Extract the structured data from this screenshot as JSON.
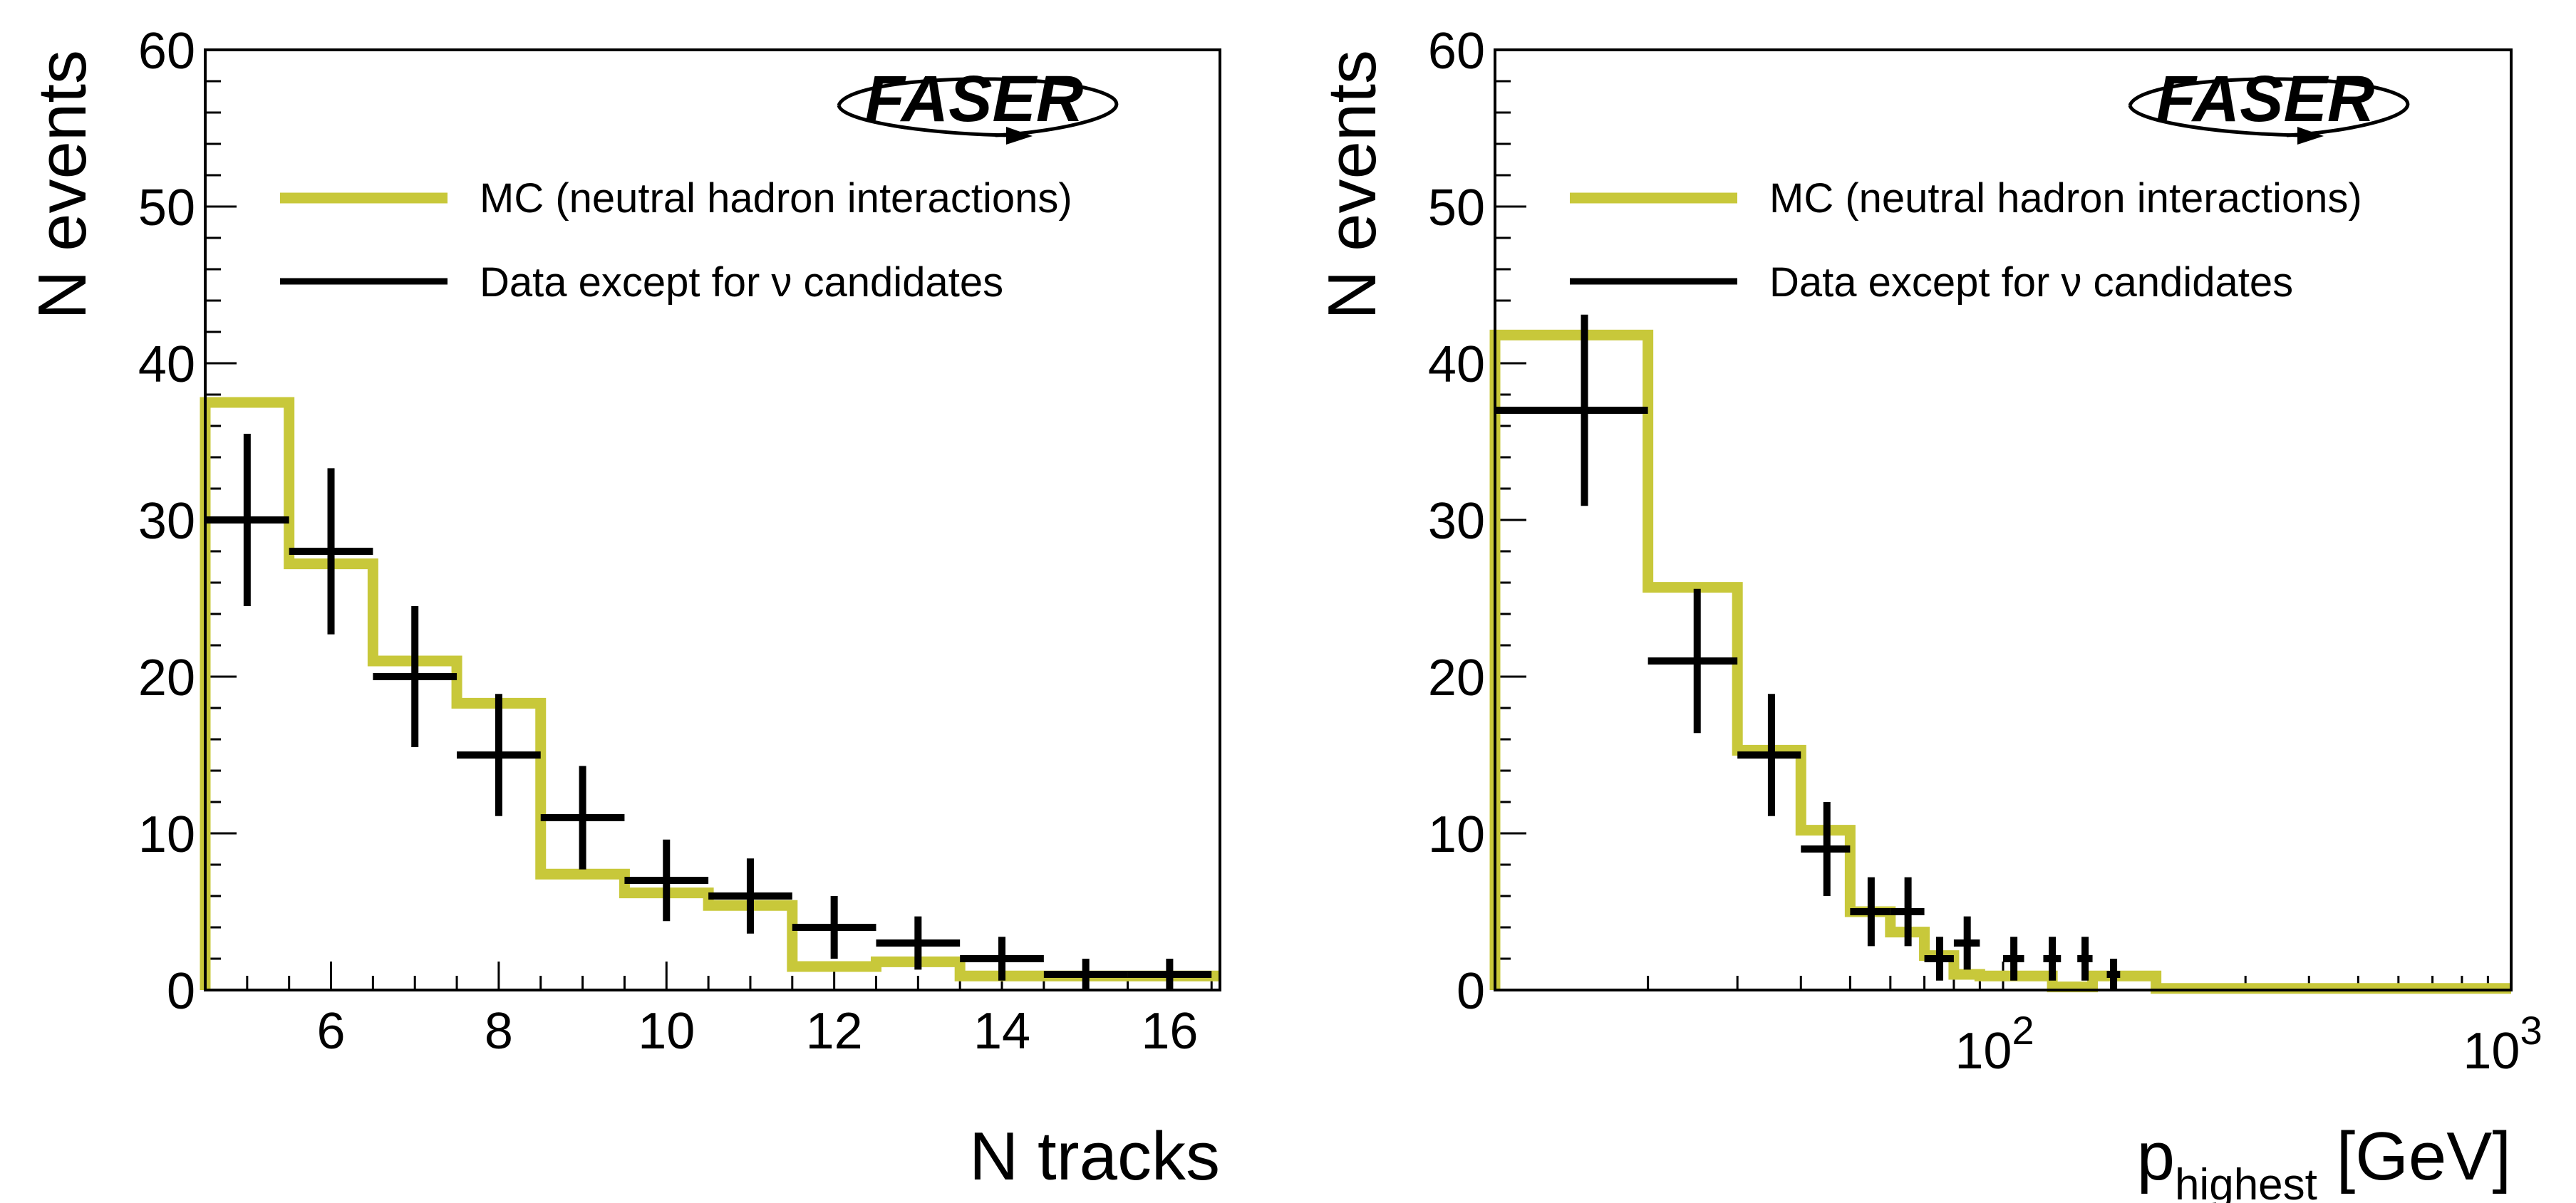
{
  "figure": {
    "colors": {
      "mc": "#c8c83a",
      "data": "#000000",
      "frame": "#000000"
    }
  },
  "chart_data": [
    {
      "type": "histogram",
      "id": "left",
      "logo": "FASER",
      "xlabel": "N tracks",
      "ylabel": "N events",
      "xscale": "linear",
      "xlim": [
        4.5,
        16.6
      ],
      "ylim": [
        0,
        60
      ],
      "xticks_major": [
        6,
        8,
        10,
        12,
        14,
        16
      ],
      "xtick_labels": [
        "6",
        "8",
        "10",
        "12",
        "14",
        "16"
      ],
      "yticks_major": [
        0,
        10,
        20,
        30,
        40,
        50,
        60
      ],
      "ytick_labels": [
        "0",
        "10",
        "20",
        "30",
        "40",
        "50",
        "60"
      ],
      "legend": {
        "position": "top-right",
        "entries": [
          {
            "label": "MC (neutral hadron interactions)",
            "style": "mc"
          },
          {
            "label": "Data except for ν candidates",
            "style": "data"
          }
        ]
      },
      "series": [
        {
          "name": "MC (neutral hadron interactions)",
          "kind": "step",
          "edges": [
            4.5,
            5.5,
            6.5,
            7.5,
            8.5,
            9.5,
            10.5,
            11.5,
            12.5,
            13.5,
            14.5,
            15.5,
            16.6
          ],
          "values": [
            37.5,
            27.2,
            21.0,
            18.3,
            7.4,
            6.2,
            5.4,
            1.5,
            1.8,
            0.9,
            0.9,
            0.9
          ]
        },
        {
          "name": "Data except for ν candidates",
          "kind": "errorbar",
          "x": [
            5,
            6,
            7,
            8,
            9,
            10,
            11,
            12,
            13,
            14,
            15,
            16
          ],
          "xerr": 0.5,
          "y": [
            30,
            28,
            20,
            15,
            11,
            7,
            6,
            4,
            3,
            2,
            1,
            1
          ],
          "yerr": [
            5.5,
            5.3,
            4.5,
            3.9,
            3.3,
            2.6,
            2.4,
            2.0,
            1.7,
            1.4,
            1.0,
            1.0
          ]
        }
      ]
    },
    {
      "type": "histogram",
      "id": "right",
      "logo": "FASER",
      "xlabel": "p",
      "xlabel_sub": "highest",
      "xlabel_unit": "[GeV]",
      "ylabel": "N events",
      "xscale": "log",
      "xlim": [
        10,
        1000
      ],
      "ylim": [
        0,
        60
      ],
      "xticks_major": [
        100,
        1000
      ],
      "xtick_label_base": "10",
      "xtick_label_exps": [
        "2",
        "3"
      ],
      "yticks_major": [
        0,
        10,
        20,
        30,
        40,
        50,
        60
      ],
      "ytick_labels": [
        "0",
        "10",
        "20",
        "30",
        "40",
        "50",
        "60"
      ],
      "legend": {
        "position": "top-right",
        "entries": [
          {
            "label": "MC (neutral hadron interactions)",
            "style": "mc"
          },
          {
            "label": "Data except for ν candidates",
            "style": "data"
          }
        ]
      },
      "series": [
        {
          "name": "MC (neutral hadron interactions)",
          "kind": "step",
          "edges": [
            10,
            20,
            30,
            40,
            50,
            60,
            70,
            80,
            90,
            100,
            125,
            150,
            200,
            1000
          ],
          "values": [
            41.8,
            25.7,
            15.3,
            10.2,
            5.0,
            3.7,
            2.2,
            1.0,
            0.9,
            0.9,
            0.2,
            0.9,
            0.1
          ]
        },
        {
          "name": "Data except for ν candidates",
          "kind": "errorbar",
          "x": [
            15,
            25,
            35,
            45,
            55,
            65,
            75,
            85,
            105,
            125,
            145,
            165
          ],
          "xlow": [
            10,
            20,
            30,
            40,
            50,
            60,
            70,
            80,
            100,
            120,
            140,
            160
          ],
          "xhigh": [
            20,
            30,
            40,
            50,
            60,
            70,
            80,
            90,
            110,
            130,
            150,
            170
          ],
          "y": [
            37,
            21,
            15,
            9,
            5,
            5,
            2,
            3,
            2,
            2,
            2,
            1
          ],
          "yerr": [
            6.1,
            4.6,
            3.9,
            3.0,
            2.2,
            2.2,
            1.4,
            1.7,
            1.4,
            1.4,
            1.4,
            1.0
          ]
        }
      ]
    }
  ]
}
